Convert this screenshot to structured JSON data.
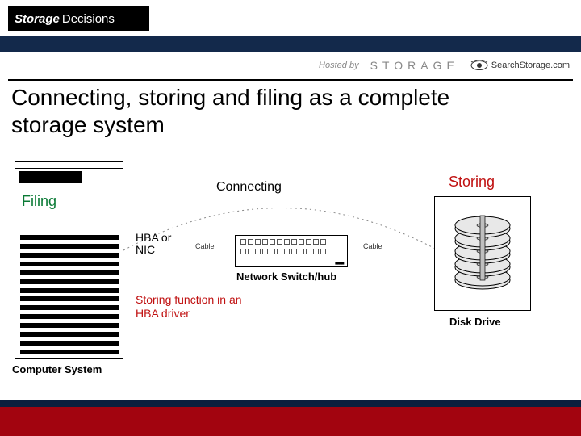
{
  "header": {
    "logo_part1": "Storage",
    "logo_part2": "Decisions",
    "hosted_by": "Hosted by",
    "storage_word": "STORAGE",
    "search_storage": "SearchStorage.com"
  },
  "title": "Connecting, storing and filing as a complete storage system",
  "diagram": {
    "filing_label": "Filing",
    "computer_caption": "Computer System",
    "hba_label": "HBA or\nNIC",
    "storing_function_label": "Storing function in an HBA  driver",
    "connecting_label": "Connecting",
    "switch_caption": "Network Switch/hub",
    "cable_label_left": "Cable",
    "cable_label_right": "Cable",
    "storing_label": "Storing",
    "disk_caption": "Disk Drive",
    "stripe_count": 14,
    "port_count_per_row": 12,
    "colors": {
      "filing": "#0a7a35",
      "storing": "#c01010",
      "storing_fn": "#c01010",
      "header_band": "#13294b",
      "footer_red": "#a2040f",
      "footer_navy": "#0d1f3d",
      "logo_bg": "#000000",
      "logo_text": "#ffffff"
    },
    "disk": {
      "platter_count": 5,
      "platter_fill": "#e8e8e8",
      "platter_stroke": "#000000",
      "spindle_fill": "#bfbfbf"
    },
    "arc": {
      "stroke": "#888888",
      "dash": "2,4"
    }
  }
}
